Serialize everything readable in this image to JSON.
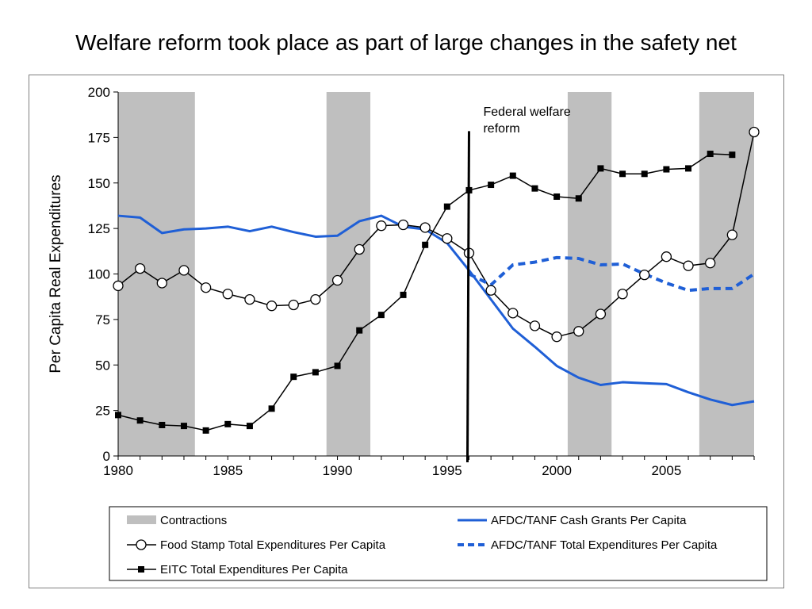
{
  "slide_title": "Welfare reform took place as part of large changes in the safety net",
  "colors": {
    "black": "#000000",
    "blue": "#1f5fd6",
    "shade": "#bfbfbf"
  },
  "chart_data": {
    "type": "line",
    "title": "Welfare reform took place as part of large changes in the safety net",
    "ylabel": "Per Capita Real Expenditures",
    "xlabel": "",
    "xlim": [
      1980,
      2009
    ],
    "ylim": [
      0,
      200
    ],
    "x_ticks": [
      "1980",
      "1985",
      "1990",
      "1995",
      "2000",
      "2005"
    ],
    "y_ticks": [
      "0",
      "25",
      "50",
      "75",
      "100",
      "125",
      "150",
      "175",
      "200"
    ],
    "x": [
      1980,
      1981,
      1982,
      1983,
      1984,
      1985,
      1986,
      1987,
      1988,
      1989,
      1990,
      1991,
      1992,
      1993,
      1994,
      1995,
      1996,
      1997,
      1998,
      1999,
      2000,
      2001,
      2002,
      2003,
      2004,
      2005,
      2006,
      2007,
      2008,
      2009
    ],
    "contractions": [
      [
        1980,
        1983.5
      ],
      [
        1989.5,
        1991.5
      ],
      [
        2000.5,
        2002.5
      ],
      [
        2006.5,
        2009
      ]
    ],
    "annotation": {
      "text": "Federal welfare reform",
      "lines": [
        "Federal welfare",
        "reform"
      ],
      "x": 1996
    },
    "series": [
      {
        "name": "AFDC/TANF Cash Grants Per Capita",
        "style": "solid-blue",
        "values": [
          132,
          131,
          122.5,
          124.5,
          125,
          126,
          123.5,
          126,
          123,
          120.5,
          121,
          129,
          132,
          126,
          124.5,
          117,
          102,
          86,
          70,
          60,
          49.5,
          43,
          39,
          40.5,
          40,
          39.5,
          35,
          31,
          28,
          30
        ]
      },
      {
        "name": "Food Stamp Total Expenditures Per Capita",
        "style": "circle-black",
        "values": [
          93.5,
          103,
          95,
          102,
          92.5,
          89,
          86,
          82.5,
          83,
          86,
          96.5,
          113.5,
          126.5,
          127,
          125.5,
          119.5,
          111.5,
          91,
          78.5,
          71.5,
          65.5,
          68.5,
          78,
          89,
          99.5,
          109.5,
          104.5,
          106,
          121.5,
          178
        ]
      },
      {
        "name": "AFDC/TANF Total Expenditures Per Capita",
        "style": "dashed-blue",
        "values": [
          null,
          null,
          null,
          null,
          null,
          null,
          null,
          null,
          null,
          null,
          null,
          null,
          null,
          null,
          null,
          null,
          100,
          94,
          105,
          106.5,
          109,
          108.5,
          105,
          105.5,
          100,
          95,
          91,
          92,
          92,
          100
        ]
      },
      {
        "name": "EITC Total Expenditures Per Capita",
        "style": "square-black",
        "values": [
          22.5,
          19.5,
          17,
          16.5,
          14,
          17.5,
          16.5,
          26,
          43.5,
          46,
          49.5,
          69,
          77.5,
          88.5,
          116,
          137,
          146,
          149,
          154,
          147,
          142.5,
          141.5,
          158,
          155,
          155,
          157.5,
          158,
          166,
          165.5,
          null
        ]
      }
    ],
    "legend": {
      "position": "bottom",
      "items": [
        {
          "label": "Contractions",
          "style": "shade"
        },
        {
          "label": "AFDC/TANF Cash Grants Per Capita",
          "style": "solid-blue"
        },
        {
          "label": "Food Stamp Total Expenditures Per Capita",
          "style": "circle-black"
        },
        {
          "label": "AFDC/TANF Total Expenditures Per Capita",
          "style": "dashed-blue"
        },
        {
          "label": "EITC Total Expenditures Per Capita",
          "style": "square-black"
        }
      ]
    }
  }
}
